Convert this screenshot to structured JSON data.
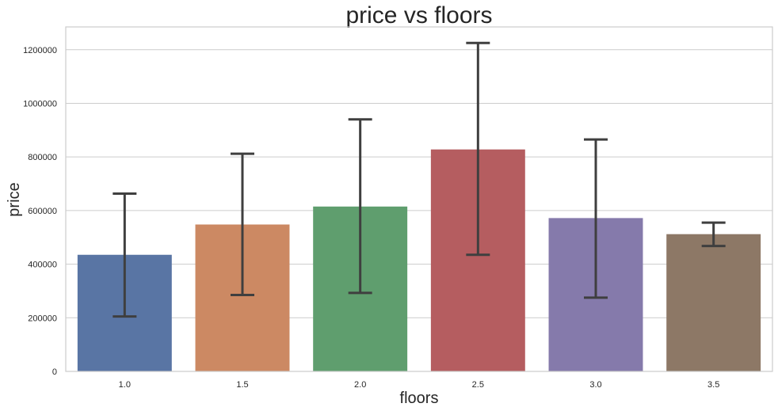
{
  "chart_data": {
    "type": "bar",
    "title": "price vs floors",
    "xlabel": "floors",
    "ylabel": "price",
    "categories": [
      "1.0",
      "1.5",
      "2.0",
      "2.5",
      "3.0",
      "3.5"
    ],
    "values": [
      435000,
      548000,
      615000,
      828000,
      572000,
      512000
    ],
    "error_low": [
      205000,
      285000,
      293000,
      435000,
      275000,
      468000
    ],
    "error_high": [
      663000,
      812000,
      940000,
      1225000,
      865000,
      555000
    ],
    "colors": [
      "#5975a4",
      "#cc8963",
      "#5f9e6e",
      "#b55d60",
      "#857aab",
      "#8d7866"
    ],
    "ylim": [
      0,
      1285000
    ],
    "yticks": [
      0,
      200000,
      400000,
      600000,
      800000,
      1000000,
      1200000
    ],
    "ytick_labels": [
      "0",
      "200000",
      "400000",
      "600000",
      "800000",
      "1000000",
      "1200000"
    ],
    "grid": true,
    "error_color": "#3f3f3f"
  }
}
